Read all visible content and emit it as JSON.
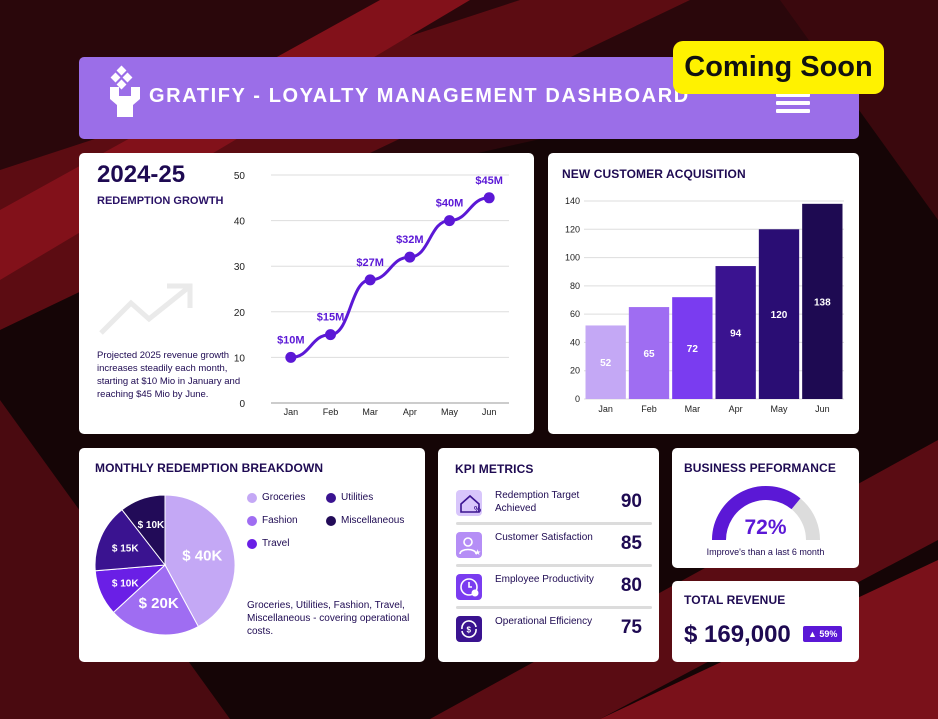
{
  "header": {
    "title": "GRATIFY - LOYALTY MANAGEMENT DASHBOARD",
    "badge": "Coming Soon",
    "logo_icon": "gift-logo-icon",
    "menu_icon": "hamburger-menu-icon"
  },
  "growth": {
    "year": "2024-25",
    "subtitle": "REDEMPTION GROWTH",
    "description": "Projected 2025 revenue growth increases steadily each month, starting at $10 Mio in January and reaching $45 Mio by June.",
    "trend_icon": "trend-up-icon"
  },
  "acquisition": {
    "title": "NEW CUSTOMER ACQUISITION"
  },
  "breakdown": {
    "title": "MONTHLY  REDEMPTION BREAKDOWN",
    "legend": [
      {
        "label": "Groceries",
        "color": "#c4a8f5"
      },
      {
        "label": "Utilities",
        "color": "#3a1390"
      },
      {
        "label": "Fashion",
        "color": "#9f6df2"
      },
      {
        "label": "Miscellaneous",
        "color": "#220b58"
      },
      {
        "label": "Travel",
        "color": "#6a1fe6"
      }
    ],
    "description": "Groceries, Utilities, Fashion, Travel, Miscellaneous - covering operational costs."
  },
  "kpi": {
    "title": "KPI METRICS",
    "items": [
      {
        "label": "Redemption Target Achieved",
        "value": "90",
        "icon": "house-percent-icon"
      },
      {
        "label": "Customer Satisfaction",
        "value": "85",
        "icon": "user-star-icon"
      },
      {
        "label": "Employee Productivity",
        "value": "80",
        "icon": "clock-plus-icon"
      },
      {
        "label": "Operational Efficiency",
        "value": "75",
        "icon": "cycle-efficiency-icon"
      }
    ]
  },
  "performance": {
    "title": "BUSINESS PEFORMANCE",
    "value": "72%",
    "fraction": 0.72,
    "note": "Improve's than a last 6 month"
  },
  "revenue": {
    "title": "TOTAL REVENUE",
    "value": "$ 169,000",
    "badge": "▲ 59%"
  },
  "colors": {
    "accent": "#5b18d6",
    "header_bg": "#9b6ee8",
    "coming_soon_bg": "#fff200",
    "navy_text": "#1e0a52",
    "bar_colors": [
      "#c4a8f5",
      "#9f6df2",
      "#7a3cf0",
      "#3a1390",
      "#2a0d74",
      "#1e0a52"
    ]
  },
  "chart_data": [
    {
      "type": "line",
      "title": "REDEMPTION GROWTH",
      "categories": [
        "Jan",
        "Feb",
        "Mar",
        "Apr",
        "May",
        "Jun"
      ],
      "values": [
        10,
        15,
        27,
        32,
        40,
        45
      ],
      "data_labels": [
        "$10M",
        "$15M",
        "$27M",
        "$32M",
        "$40M",
        "$45M"
      ],
      "ylim": [
        0,
        50
      ],
      "yticks": [
        0,
        10,
        20,
        30,
        40,
        50
      ],
      "grid": true
    },
    {
      "type": "bar",
      "title": "NEW CUSTOMER ACQUISITION",
      "categories": [
        "Jan",
        "Feb",
        "Mar",
        "Apr",
        "May",
        "Jun"
      ],
      "values": [
        52,
        65,
        72,
        94,
        120,
        138
      ],
      "ylim": [
        0,
        140
      ],
      "yticks": [
        0,
        20,
        40,
        60,
        80,
        100,
        120,
        140
      ],
      "grid": true
    },
    {
      "type": "pie",
      "title": "MONTHLY  REDEMPTION BREAKDOWN",
      "slices": [
        {
          "name": "Groceries",
          "value": 40,
          "label": "$ 40K",
          "color": "#c4a8f5"
        },
        {
          "name": "Fashion",
          "value": 20,
          "label": "$ 20K",
          "color": "#9f6df2"
        },
        {
          "name": "Travel",
          "value": 10,
          "label": "$ 10K",
          "color": "#6a1fe6"
        },
        {
          "name": "Utilities",
          "value": 15,
          "label": "$ 15K",
          "color": "#3a1390"
        },
        {
          "name": "Miscellaneous",
          "value": 10,
          "label": "$ 10K",
          "color": "#220b58"
        }
      ]
    }
  ]
}
